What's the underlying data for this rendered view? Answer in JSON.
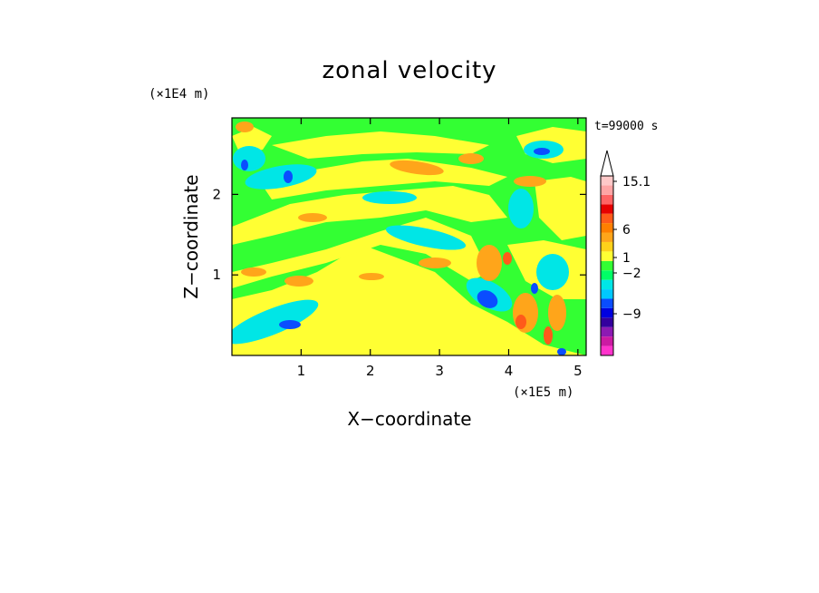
{
  "chart_data": {
    "type": "heatmap",
    "title": "zonal velocity",
    "xlabel": "X−coordinate",
    "ylabel": "Z−coordinate",
    "x_unit": "(×1E5 m)",
    "y_unit": "(×1E4 m)",
    "time_label": "t=99000 s",
    "xlim": [
      0,
      5.12
    ],
    "ylim": [
      0,
      2.95
    ],
    "x_ticks": [
      "1",
      "2",
      "3",
      "4",
      "5"
    ],
    "y_ticks": [
      "1",
      "2"
    ],
    "x_tick_values": [
      1,
      2,
      3,
      4,
      5
    ],
    "y_tick_values": [
      1,
      2
    ],
    "colorbar": {
      "levels_colors": [
        "#ff33cc",
        "#cc1aa3",
        "#8c1ab3",
        "#33009e",
        "#0000e0",
        "#0a4dff",
        "#00c8ff",
        "#00e6e6",
        "#00ff66",
        "#33ff33",
        "#ffff33",
        "#ffd21a",
        "#ffa51a",
        "#ff7f00",
        "#ff5a1a",
        "#e60000",
        "#ff6464",
        "#ffa5a5",
        "#ffc8c8"
      ],
      "labels": [
        "15.1",
        "6",
        "1",
        "−2",
        "−9"
      ],
      "label_values": [
        15.1,
        6,
        1,
        -2,
        -9
      ]
    },
    "grid": false,
    "legend": "colorbar-right"
  }
}
